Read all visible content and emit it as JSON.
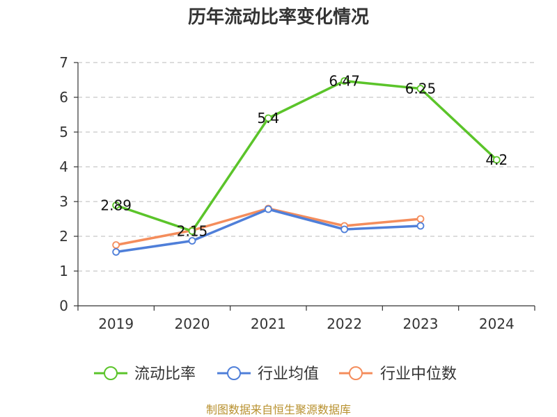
{
  "chart_data": {
    "type": "line",
    "title": "历年流动比率变化情况",
    "categories": [
      "2019",
      "2020",
      "2021",
      "2022",
      "2023",
      "2024"
    ],
    "ylim": [
      0,
      7
    ],
    "yticks": [
      "0",
      "1",
      "2",
      "3",
      "4",
      "5",
      "6",
      "7"
    ],
    "grid": true,
    "legend_position": "bottom",
    "series": [
      {
        "name": "流动比率",
        "color": "#5bc42a",
        "values": [
          2.89,
          2.15,
          5.4,
          6.47,
          6.25,
          4.2
        ],
        "labels": [
          "2.89",
          "2.15",
          "5.4",
          "6.47",
          "6.25",
          "4.2"
        ]
      },
      {
        "name": "行业均值",
        "color": "#4f7fd9",
        "values": [
          1.55,
          1.87,
          2.78,
          2.2,
          2.3,
          null
        ]
      },
      {
        "name": "行业中位数",
        "color": "#f48d5c",
        "values": [
          1.75,
          2.17,
          2.8,
          2.3,
          2.5,
          null
        ]
      }
    ],
    "source": "制图数据来自恒生聚源数据库"
  }
}
